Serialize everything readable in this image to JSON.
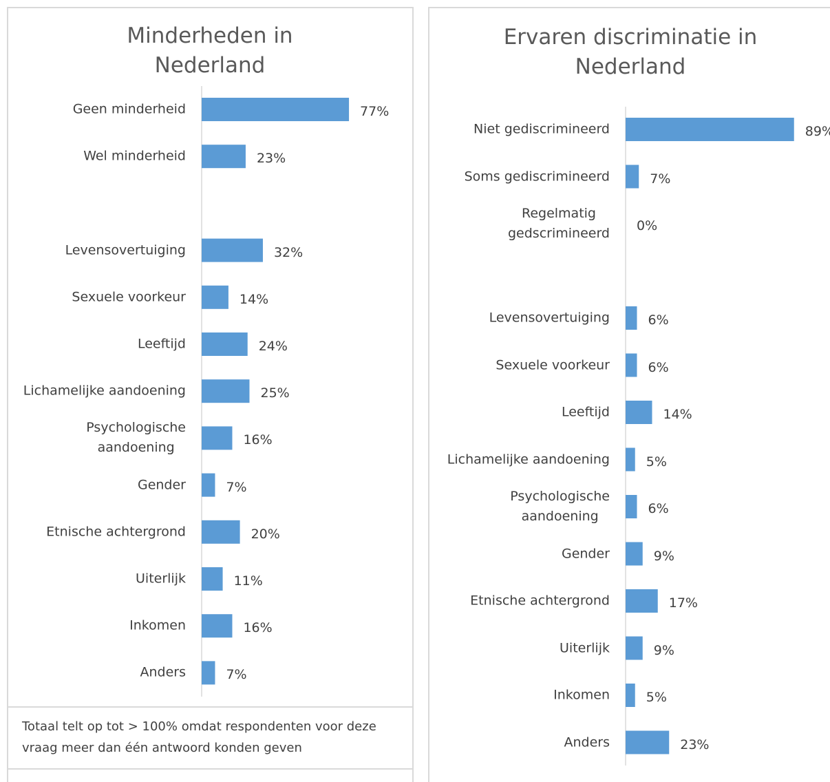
{
  "chart_data": [
    {
      "type": "bar",
      "orientation": "horizontal",
      "title": "Minderheden in Nederland",
      "categories": [
        "Geen minderheid",
        "Wel minderheid",
        null,
        "Levensovertuiging",
        "Sexuele voorkeur",
        "Leeftijd",
        "Lichamelijke aandoening",
        "Psychologische\naandoening",
        "Gender",
        "Etnische achtergrond",
        "Uiterlijk",
        "Inkomen",
        "Anders"
      ],
      "values": [
        77,
        23,
        null,
        32,
        14,
        24,
        25,
        16,
        7,
        20,
        11,
        16,
        7
      ],
      "value_labels": [
        "77%",
        "23%",
        null,
        "32%",
        "14%",
        "24%",
        "25%",
        "16%",
        "7%",
        "20%",
        "11%",
        "16%",
        "7%"
      ],
      "color": "#5b9bd5",
      "xlim": [
        0,
        100
      ],
      "grid": false
    },
    {
      "type": "bar",
      "orientation": "horizontal",
      "title": "Ervaren discriminatie in Nederland",
      "categories": [
        "Niet gediscrimineerd",
        "Soms gediscrimineerd",
        "Regelmatig\ngedscrimineerd",
        null,
        "Levensovertuiging",
        "Sexuele voorkeur",
        "Leeftijd",
        "Lichamelijke aandoening",
        "Psychologische\naandoening",
        "Gender",
        "Etnische achtergrond",
        "Uiterlijk",
        "Inkomen",
        "Anders"
      ],
      "values": [
        89,
        7,
        0,
        null,
        6,
        6,
        14,
        5,
        6,
        9,
        17,
        9,
        5,
        23
      ],
      "value_labels": [
        "89%",
        "7%",
        "0%",
        null,
        "6%",
        "6%",
        "14%",
        "5%",
        "6%",
        "9%",
        "17%",
        "9%",
        "5%",
        "23%"
      ],
      "color": "#5b9bd5",
      "xlim": [
        0,
        100
      ],
      "grid": false
    }
  ],
  "footnote": "Totaal telt op tot > 100% omdat respondenten voor deze vraag meer dan één antwoord konden geven"
}
